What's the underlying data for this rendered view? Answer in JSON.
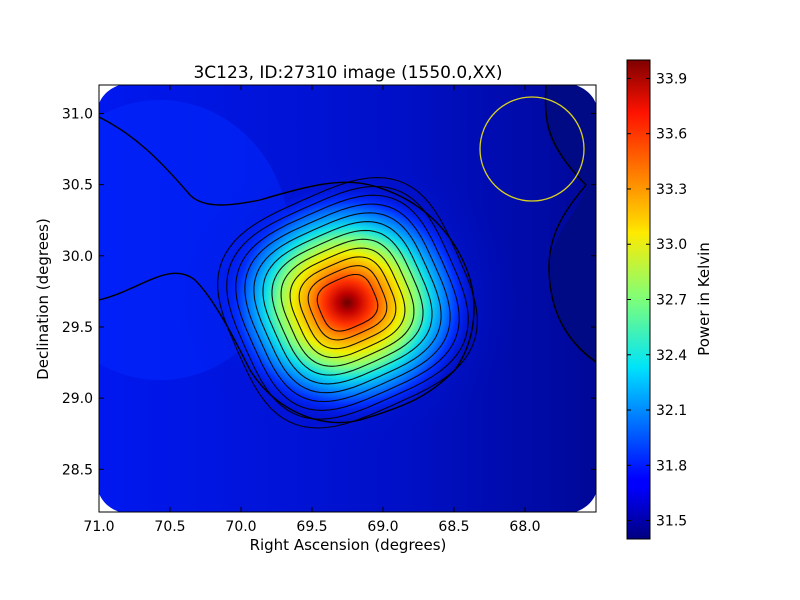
{
  "chart_data": {
    "type": "heatmap",
    "title": "3C123, ID:27310 image (1550.0,XX)",
    "xlabel": "Right Ascension (degrees)",
    "ylabel": "Declination (degrees)",
    "xlim": [
      71.0,
      67.5
    ],
    "ylim": [
      28.2,
      31.2
    ],
    "x_ticks": [
      71.0,
      70.5,
      70.0,
      69.5,
      69.0,
      68.5,
      68.0
    ],
    "x_tick_labels": [
      "71.0",
      "70.5",
      "70.0",
      "69.5",
      "69.0",
      "68.5",
      "68.0"
    ],
    "y_ticks": [
      28.5,
      29.0,
      29.5,
      30.0,
      30.5,
      31.0
    ],
    "y_tick_labels": [
      "28.5",
      "29.0",
      "29.5",
      "30.0",
      "30.5",
      "31.0"
    ],
    "colorbar": {
      "label": "Power in Kelvin",
      "range": [
        31.4,
        34.0
      ],
      "ticks": [
        31.5,
        31.8,
        32.1,
        32.4,
        32.7,
        33.0,
        33.3,
        33.6,
        33.9
      ],
      "tick_labels": [
        "31.5",
        "31.8",
        "32.1",
        "32.4",
        "32.7",
        "33.0",
        "33.3",
        "33.6",
        "33.9"
      ],
      "colormap": "jet"
    },
    "peak": {
      "ra": 69.25,
      "dec": 29.67,
      "value": 34.0
    },
    "contour_count": 12,
    "beam_circle": {
      "ra": 68.0,
      "dec": 30.72,
      "radius_deg": 0.37,
      "color": "#d8d020"
    },
    "grid": false
  }
}
